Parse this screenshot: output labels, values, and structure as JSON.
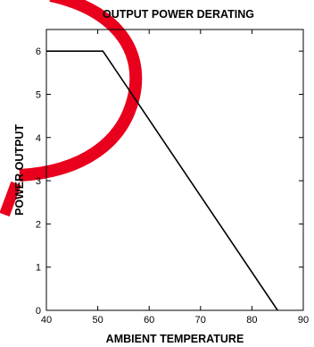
{
  "watermark_color": "#e8001c",
  "chart_data": {
    "type": "line",
    "title": "OUTPUT POWER DERATING",
    "xlabel": "AMBIENT TEMPERATURE",
    "ylabel": "POWER OUTPUT",
    "xlim": [
      40,
      90
    ],
    "ylim": [
      0,
      6.5
    ],
    "xticks": [
      40,
      50,
      60,
      70,
      80,
      90
    ],
    "yticks": [
      0,
      1,
      2,
      3,
      4,
      5,
      6
    ],
    "grid": false,
    "line_color": "#000000",
    "series": [
      {
        "x": [
          40,
          51,
          85
        ],
        "y": [
          6,
          6,
          0
        ]
      }
    ]
  }
}
